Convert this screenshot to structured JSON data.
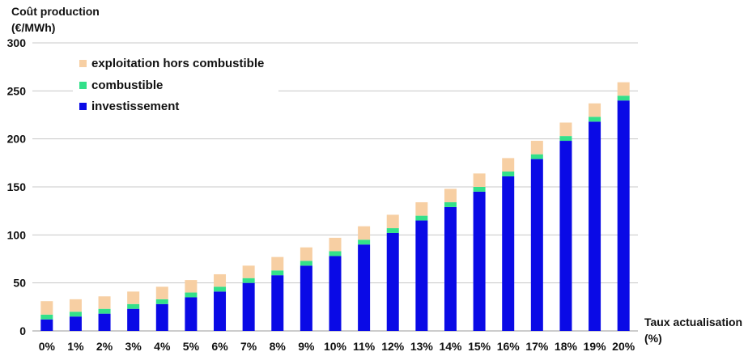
{
  "chart_data": {
    "type": "bar",
    "stacked": true,
    "ylabel_line1": "Coût production",
    "ylabel_line2": "(€/MWh)",
    "xlabel_line1": "Taux actualisation",
    "xlabel_line2": "(%)",
    "ylim": [
      0,
      300
    ],
    "yticks": [
      0,
      50,
      100,
      150,
      200,
      250,
      300
    ],
    "grid": true,
    "legend_position": "top-left",
    "categories": [
      "0%",
      "1%",
      "2%",
      "3%",
      "4%",
      "5%",
      "6%",
      "7%",
      "8%",
      "9%",
      "10%",
      "11%",
      "12%",
      "13%",
      "14%",
      "15%",
      "16%",
      "17%",
      "18%",
      "19%",
      "20%"
    ],
    "series": [
      {
        "name": "investissement",
        "color": "#0a0ae6",
        "values": [
          12,
          15,
          18,
          23,
          28,
          35,
          41,
          50,
          58,
          68,
          78,
          90,
          102,
          115,
          129,
          145,
          161,
          179,
          198,
          218,
          240
        ]
      },
      {
        "name": "combustible",
        "color": "#33e08a",
        "values": [
          5,
          5,
          5,
          5,
          5,
          5,
          5,
          5,
          5,
          5,
          5,
          5,
          5,
          5,
          5,
          5,
          5,
          5,
          5,
          5,
          5
        ]
      },
      {
        "name": "exploitation hors combustible",
        "color": "#f7cfa3",
        "values": [
          14,
          13,
          13,
          13,
          13,
          13,
          13,
          13,
          14,
          14,
          14,
          14,
          14,
          14,
          14,
          14,
          14,
          14,
          14,
          14,
          14
        ]
      }
    ],
    "legend_order": [
      "exploitation hors combustible",
      "combustible",
      "investissement"
    ]
  }
}
